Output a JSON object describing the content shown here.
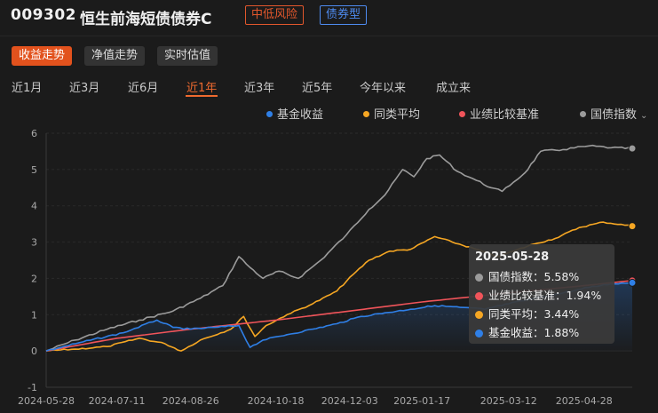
{
  "header": {
    "code": "009302",
    "name": "恒生前海短债债券C",
    "risk_tag": "中低风险",
    "type_tag": "债券型"
  },
  "view_tabs": [
    {
      "label": "收益走势",
      "active": true
    },
    {
      "label": "净值走势",
      "active": false
    },
    {
      "label": "实时估值",
      "active": false
    }
  ],
  "period_tabs": [
    {
      "label": "近1月",
      "active": false
    },
    {
      "label": "近3月",
      "active": false
    },
    {
      "label": "近6月",
      "active": false
    },
    {
      "label": "近1年",
      "active": true
    },
    {
      "label": "近3年",
      "active": false
    },
    {
      "label": "近5年",
      "active": false
    },
    {
      "label": "今年以来",
      "active": false
    },
    {
      "label": "成立来",
      "active": false
    }
  ],
  "legend": {
    "items": [
      {
        "label": "基金收益",
        "color": "#2f7fe6"
      },
      {
        "label": "同类平均",
        "color": "#f5a623"
      },
      {
        "label": "业绩比较基准",
        "color": "#f0545a"
      },
      {
        "label": "国债指数",
        "color": "#9b9b9b",
        "icon": "chevron-down-icon"
      }
    ]
  },
  "tooltip": {
    "date": "2025-05-28",
    "rows": [
      {
        "label": "国债指数：5.58%",
        "color": "#9b9b9b"
      },
      {
        "label": "业绩比较基准：1.94%",
        "color": "#f0545a"
      },
      {
        "label": "同类平均：3.44%",
        "color": "#f5a623"
      },
      {
        "label": "基金收益：1.88%",
        "color": "#2f7fe6"
      }
    ]
  },
  "chart_data": {
    "type": "line",
    "title": "",
    "xlabel": "",
    "ylabel": "",
    "ylim": [
      -1,
      6
    ],
    "y_ticks": [
      "-1",
      "0",
      "1",
      "2",
      "3",
      "4",
      "5",
      "6"
    ],
    "x_ticks": [
      "2024-05-28",
      "2024-07-11",
      "2024-08-26",
      "2024-10-18",
      "2024-12-03",
      "2025-01-17",
      "2025-03-12",
      "2025-04-28"
    ],
    "grid": true,
    "legend_position": "top-right",
    "x_range": [
      "2024-05-28",
      "2025-05-28"
    ],
    "series": [
      {
        "name": "国债指数",
        "color": "#9b9b9b",
        "points": [
          [
            "2024-05-28",
            0
          ],
          [
            "2024-06-15",
            0.3
          ],
          [
            "2024-07-05",
            0.6
          ],
          [
            "2024-07-25",
            0.85
          ],
          [
            "2024-08-15",
            1.1
          ],
          [
            "2024-09-01",
            1.45
          ],
          [
            "2024-09-15",
            1.8
          ],
          [
            "2024-09-25",
            2.6
          ],
          [
            "2024-10-02",
            2.3
          ],
          [
            "2024-10-10",
            2.0
          ],
          [
            "2024-10-20",
            2.2
          ],
          [
            "2024-11-01",
            2.0
          ],
          [
            "2024-11-15",
            2.5
          ],
          [
            "2024-12-01",
            3.2
          ],
          [
            "2024-12-15",
            3.9
          ],
          [
            "2024-12-25",
            4.3
          ],
          [
            "2025-01-05",
            5.0
          ],
          [
            "2025-01-12",
            4.8
          ],
          [
            "2025-01-20",
            5.3
          ],
          [
            "2025-01-28",
            5.4
          ],
          [
            "2025-02-08",
            4.95
          ],
          [
            "2025-02-20",
            4.7
          ],
          [
            "2025-03-01",
            4.5
          ],
          [
            "2025-03-08",
            4.4
          ],
          [
            "2025-03-15",
            4.65
          ],
          [
            "2025-03-22",
            4.9
          ],
          [
            "2025-04-01",
            5.5
          ],
          [
            "2025-04-15",
            5.55
          ],
          [
            "2025-05-01",
            5.65
          ],
          [
            "2025-05-15",
            5.6
          ],
          [
            "2025-05-28",
            5.58
          ]
        ]
      },
      {
        "name": "同类平均",
        "color": "#f5a623",
        "points": [
          [
            "2024-05-28",
            0
          ],
          [
            "2024-06-15",
            0.05
          ],
          [
            "2024-07-05",
            0.12
          ],
          [
            "2024-07-25",
            0.35
          ],
          [
            "2024-08-10",
            0.2
          ],
          [
            "2024-08-20",
            0.0
          ],
          [
            "2024-09-01",
            0.3
          ],
          [
            "2024-09-20",
            0.6
          ],
          [
            "2024-09-28",
            0.95
          ],
          [
            "2024-10-05",
            0.4
          ],
          [
            "2024-10-12",
            0.7
          ],
          [
            "2024-10-25",
            1.0
          ],
          [
            "2024-11-10",
            1.3
          ],
          [
            "2024-11-25",
            1.65
          ],
          [
            "2024-12-05",
            2.1
          ],
          [
            "2024-12-15",
            2.5
          ],
          [
            "2024-12-28",
            2.75
          ],
          [
            "2025-01-10",
            2.8
          ],
          [
            "2025-01-25",
            3.15
          ],
          [
            "2025-02-05",
            3.0
          ],
          [
            "2025-02-20",
            2.8
          ],
          [
            "2025-03-05",
            2.6
          ],
          [
            "2025-03-15",
            2.75
          ],
          [
            "2025-03-28",
            2.95
          ],
          [
            "2025-04-10",
            3.1
          ],
          [
            "2025-04-25",
            3.4
          ],
          [
            "2025-05-10",
            3.55
          ],
          [
            "2025-05-28",
            3.44
          ]
        ]
      },
      {
        "name": "业绩比较基准",
        "color": "#f0545a",
        "points": [
          [
            "2024-05-28",
            0
          ],
          [
            "2024-07-11",
            0.35
          ],
          [
            "2024-08-26",
            0.6
          ],
          [
            "2024-10-18",
            0.85
          ],
          [
            "2024-12-03",
            1.1
          ],
          [
            "2025-01-17",
            1.35
          ],
          [
            "2025-03-12",
            1.6
          ],
          [
            "2025-04-28",
            1.8
          ],
          [
            "2025-05-28",
            1.94
          ]
        ]
      },
      {
        "name": "基金收益",
        "color": "#2f7fe6",
        "points": [
          [
            "2024-05-28",
            0
          ],
          [
            "2024-06-20",
            0.25
          ],
          [
            "2024-07-15",
            0.5
          ],
          [
            "2024-08-05",
            0.85
          ],
          [
            "2024-08-15",
            0.65
          ],
          [
            "2024-08-26",
            0.6
          ],
          [
            "2024-09-10",
            0.65
          ],
          [
            "2024-09-25",
            0.7
          ],
          [
            "2024-10-02",
            0.1
          ],
          [
            "2024-10-10",
            0.3
          ],
          [
            "2024-10-25",
            0.45
          ],
          [
            "2024-11-10",
            0.6
          ],
          [
            "2024-11-25",
            0.75
          ],
          [
            "2024-12-10",
            0.95
          ],
          [
            "2024-12-25",
            1.05
          ],
          [
            "2025-01-10",
            1.15
          ],
          [
            "2025-01-25",
            1.25
          ],
          [
            "2025-02-10",
            1.2
          ],
          [
            "2025-02-25",
            1.15
          ],
          [
            "2025-03-12",
            1.3
          ],
          [
            "2025-03-28",
            1.45
          ],
          [
            "2025-04-15",
            1.6
          ],
          [
            "2025-05-01",
            1.75
          ],
          [
            "2025-05-15",
            1.85
          ],
          [
            "2025-05-28",
            1.88
          ]
        ]
      }
    ]
  }
}
